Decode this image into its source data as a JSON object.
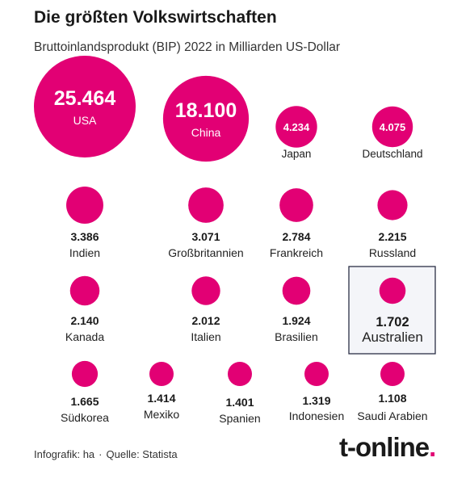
{
  "header": {
    "title": "Die größten Volkswirtschaften",
    "subtitle": "Bruttoinlandsprodukt (BIP) 2022 in Milliarden US-Dollar"
  },
  "chart_data": {
    "type": "bubble",
    "title": "Die größten Volkswirtschaften",
    "subtitle": "Bruttoinlandsprodukt (BIP) 2022 in Milliarden US-Dollar",
    "unit": "Milliarden US-Dollar",
    "color": "#e20074",
    "highlight_color": "#2b2f45",
    "highlighted": "Australien",
    "categories": [
      "USA",
      "China",
      "Japan",
      "Deutschland",
      "Indien",
      "Großbritannien",
      "Frankreich",
      "Russland",
      "Kanada",
      "Italien",
      "Brasilien",
      "Australien",
      "Südkorea",
      "Mexiko",
      "Spanien",
      "Indonesien",
      "Saudi Arabien"
    ],
    "values": [
      25464,
      18100,
      4234,
      4075,
      3386,
      3071,
      2784,
      2215,
      2140,
      2012,
      1924,
      1702,
      1665,
      1414,
      1401,
      1319,
      1108
    ],
    "value_labels": [
      "25.464",
      "18.100",
      "4.234",
      "4.075",
      "3.386",
      "3.071",
      "2.784",
      "2.215",
      "2.140",
      "2.012",
      "1.924",
      "1.702",
      "1.665",
      "1.414",
      "1.401",
      "1.319",
      "1.108"
    ]
  },
  "footer": {
    "credit": "Infografik: ha",
    "source": "Quelle: Statista",
    "separator": "·"
  },
  "logo": {
    "text": "t-online",
    "dot": "."
  }
}
